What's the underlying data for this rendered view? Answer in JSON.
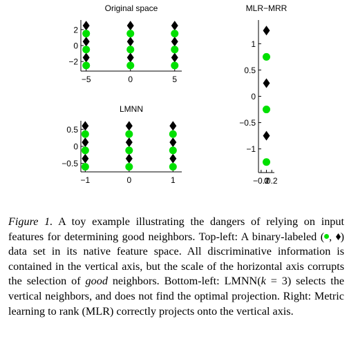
{
  "chart_data": [
    {
      "type": "scatter",
      "title": "Original space",
      "xlim": [
        -5.6,
        5.8
      ],
      "ylim": [
        -3.2,
        3.2
      ],
      "xticks": [
        -5,
        0,
        5
      ],
      "yticks": [
        -2,
        0,
        2
      ],
      "xtick_labels": [
        "−5",
        "0",
        "5"
      ],
      "ytick_labels": [
        "−2",
        "0",
        "2"
      ],
      "series": [
        {
          "marker": "diamond",
          "color": "#000000",
          "x": [
            -5,
            -5,
            -5,
            0,
            0,
            0,
            5,
            5,
            5
          ],
          "y": [
            2.5,
            0.5,
            -1.5,
            2.5,
            0.5,
            -1.5,
            2.5,
            0.5,
            -1.5
          ]
        },
        {
          "marker": "circle",
          "color": "#00e000",
          "x": [
            -5,
            -5,
            -5,
            0,
            0,
            0,
            5,
            5,
            5
          ],
          "y": [
            1.5,
            -0.5,
            -2.5,
            1.5,
            -0.5,
            -2.5,
            1.5,
            -0.5,
            -2.5
          ]
        }
      ]
    },
    {
      "type": "scatter",
      "title": "LMNN",
      "xlim": [
        -1.1,
        1.2
      ],
      "ylim": [
        -0.75,
        0.75
      ],
      "xticks": [
        -1,
        0,
        1
      ],
      "yticks": [
        -0.5,
        0,
        0.5
      ],
      "xtick_labels": [
        "−1",
        "0",
        "1"
      ],
      "ytick_labels": [
        "−0.5",
        "0",
        "0.5"
      ],
      "series": [
        {
          "marker": "diamond",
          "color": "#000000",
          "x": [
            -1,
            -1,
            -1,
            0,
            0,
            0,
            1,
            1,
            1
          ],
          "y": [
            0.6,
            0.12,
            -0.36,
            0.6,
            0.12,
            -0.36,
            0.6,
            0.12,
            -0.36
          ]
        },
        {
          "marker": "circle",
          "color": "#00e000",
          "x": [
            -1,
            -1,
            -1,
            0,
            0,
            0,
            1,
            1,
            1
          ],
          "y": [
            0.36,
            -0.12,
            -0.6,
            0.36,
            -0.12,
            -0.6,
            0.36,
            -0.12,
            -0.6
          ]
        }
      ]
    },
    {
      "type": "scatter",
      "title": "MLR−MRR",
      "xlim": [
        -0.3,
        0.3
      ],
      "ylim": [
        -1.45,
        1.45
      ],
      "xticks": [
        -0.2,
        0,
        0.2
      ],
      "yticks": [
        -1,
        -0.5,
        0,
        0.5,
        1
      ],
      "xtick_labels": [
        "−0.2",
        "0",
        "0.2"
      ],
      "ytick_labels": [
        "−1",
        "−0.5",
        "0",
        "0.5",
        "1"
      ],
      "series": [
        {
          "marker": "diamond",
          "color": "#000000",
          "x": [
            0,
            0,
            0
          ],
          "y": [
            1.25,
            0.25,
            -0.75
          ]
        },
        {
          "marker": "circle",
          "color": "#00e000",
          "x": [
            0,
            0,
            0
          ],
          "y": [
            0.75,
            -0.25,
            -1.25
          ]
        }
      ]
    }
  ],
  "caption": {
    "label": "Figure 1.",
    "part1": " A toy example illustrating the dangers of relying on input features for determining good neighbors. Top-left: A binary-labeled (",
    "sep": ", ",
    "part2": ") data set in its native feature space. All discriminative information is contained in the vertical axis, but the scale of the horizontal axis corrupts the selection of ",
    "emph": "good",
    "part3": " neighbors. Bottom-left: LMNN(",
    "k_expr": "k",
    "part4": " = 3) selects the vertical neighbors, and does not find the optimal projection. Right: Metric learning to rank (MLR) correctly projects onto the vertical axis."
  }
}
